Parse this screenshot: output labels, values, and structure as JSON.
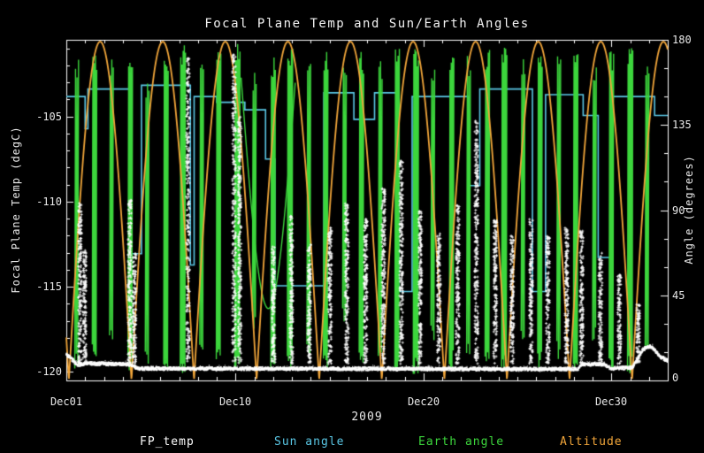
{
  "chart_data": {
    "type": "line",
    "title": "Focal Plane Temp and Sun/Earth Angles",
    "xlabel": "2009",
    "ylabel": "Focal Plane Temp (degC)",
    "x_range": [
      1,
      33
    ],
    "x_ticks": [
      {
        "day": 1,
        "label": "Dec01"
      },
      {
        "day": 10,
        "label": "Dec10"
      },
      {
        "day": 20,
        "label": "Dec20"
      },
      {
        "day": 30,
        "label": "Dec30"
      }
    ],
    "left_axis": {
      "label": "Focal Plane Temp (degC)",
      "range": [
        -120.5,
        -100.5
      ],
      "ticks": [
        -105,
        -110,
        -115,
        -120
      ],
      "tick_labels": [
        "-105",
        "-110",
        "-115",
        "-120"
      ]
    },
    "right_axis": {
      "label": "Angle (degrees)",
      "range": [
        0,
        180
      ],
      "ticks": [
        180,
        135,
        90,
        45,
        0
      ],
      "tick_labels": [
        "180",
        "135",
        "90",
        "45",
        "0"
      ]
    },
    "grid": false,
    "legend_position": "bottom",
    "legend": [
      {
        "label": "FP_temp",
        "color": "#ffffff"
      },
      {
        "label": "Sun angle",
        "color": "#5ac8e6"
      },
      {
        "label": "Earth angle",
        "color": "#3cd63c"
      },
      {
        "label": "Altitude",
        "color": "#f2a63a"
      }
    ],
    "series": [
      {
        "name": "Sun angle",
        "axis": "right",
        "type": "step",
        "color": "#5ac8e6",
        "changes": [
          [
            1.0,
            150
          ],
          [
            2.0,
            133
          ],
          [
            2.15,
            154
          ],
          [
            4.4,
            67
          ],
          [
            5.0,
            156
          ],
          [
            7.6,
            61
          ],
          [
            7.8,
            150
          ],
          [
            9.0,
            147
          ],
          [
            10.5,
            143
          ],
          [
            11.6,
            117
          ],
          [
            12.1,
            50
          ],
          [
            14.7,
            152
          ],
          [
            16.3,
            138
          ],
          [
            17.4,
            152
          ],
          [
            18.7,
            47
          ],
          [
            19.4,
            150
          ],
          [
            22.4,
            103
          ],
          [
            23.0,
            154
          ],
          [
            25.8,
            47
          ],
          [
            26.5,
            151
          ],
          [
            28.5,
            140
          ],
          [
            29.3,
            65
          ],
          [
            30.0,
            150
          ],
          [
            32.3,
            140
          ]
        ]
      },
      {
        "name": "Earth angle",
        "axis": "right",
        "type": "burst",
        "color": "#3cd63c",
        "windows": [
          [
            1.55,
            0.1,
            5,
            172,
            5
          ],
          [
            2.5,
            0.12,
            10,
            176,
            7
          ],
          [
            3.4,
            0.1,
            20,
            170,
            5
          ],
          [
            4.4,
            0.12,
            5,
            175,
            7
          ],
          [
            5.3,
            0.1,
            8,
            160,
            5
          ],
          [
            6.3,
            0.12,
            5,
            175,
            7
          ],
          [
            7.2,
            0.14,
            3,
            178,
            9
          ],
          [
            8.2,
            0.1,
            15,
            170,
            5
          ],
          [
            9.1,
            0.12,
            5,
            176,
            7
          ],
          [
            10.1,
            0.14,
            3,
            178,
            9
          ],
          [
            11.0,
            0.1,
            25,
            165,
            5
          ],
          [
            12.0,
            0.12,
            5,
            172,
            7
          ],
          [
            12.9,
            0.14,
            3,
            177,
            9
          ],
          [
            13.9,
            0.1,
            10,
            170,
            5
          ],
          [
            14.8,
            0.12,
            5,
            175,
            7
          ],
          [
            15.8,
            0.1,
            30,
            168,
            5
          ],
          [
            16.7,
            0.12,
            5,
            174,
            7
          ],
          [
            17.7,
            0.1,
            12,
            170,
            5
          ],
          [
            18.6,
            0.12,
            4,
            176,
            7
          ],
          [
            19.6,
            0.14,
            3,
            178,
            9
          ],
          [
            20.5,
            0.1,
            18,
            168,
            5
          ],
          [
            21.5,
            0.12,
            5,
            174,
            7
          ],
          [
            22.4,
            0.1,
            8,
            172,
            5
          ],
          [
            23.4,
            0.12,
            4,
            176,
            7
          ],
          [
            24.3,
            0.14,
            3,
            177,
            9
          ],
          [
            25.3,
            0.1,
            15,
            170,
            5
          ],
          [
            26.2,
            0.12,
            5,
            174,
            7
          ],
          [
            27.2,
            0.1,
            10,
            172,
            5
          ],
          [
            28.1,
            0.12,
            4,
            176,
            7
          ],
          [
            29.1,
            0.1,
            20,
            168,
            5
          ],
          [
            30.0,
            0.12,
            5,
            174,
            7
          ],
          [
            31.0,
            0.14,
            3,
            177,
            9
          ],
          [
            31.9,
            0.1,
            12,
            170,
            5
          ]
        ],
        "slow_arcs": [
          [
            10.3,
            13.2,
            160,
            38
          ]
        ]
      },
      {
        "name": "Altitude",
        "axis": "right",
        "type": "arches",
        "color": "#f2a63a",
        "period": 3.33,
        "t0": 1.135,
        "peak": 179
      },
      {
        "name": "FP_temp",
        "axis": "left",
        "type": "scatter",
        "color": "#ffffff",
        "noise": 0.09,
        "baseline_anchors": [
          [
            1,
            -118.9
          ],
          [
            1.6,
            -119.55
          ],
          [
            2.0,
            -119.45
          ],
          [
            4.4,
            -119.5
          ],
          [
            4.8,
            -119.75
          ],
          [
            28.2,
            -119.78
          ],
          [
            28.4,
            -119.5
          ],
          [
            29.6,
            -119.5
          ],
          [
            30.0,
            -119.75
          ],
          [
            31.1,
            -119.7
          ],
          [
            31.7,
            -118.6
          ],
          [
            32.1,
            -118.45
          ],
          [
            32.6,
            -119.05
          ],
          [
            33,
            -119.3
          ]
        ],
        "events": [
          [
            1.7,
            -110.0
          ],
          [
            1.95,
            -112.8
          ],
          [
            4.35,
            -109.8
          ],
          [
            4.6,
            -113
          ],
          [
            7.45,
            -101.5
          ],
          [
            9.9,
            -101.2
          ],
          [
            10.2,
            -105
          ],
          [
            12.0,
            -112.5
          ],
          [
            12.95,
            -110.8
          ],
          [
            13.9,
            -112.5
          ],
          [
            15.0,
            -111.5
          ],
          [
            15.9,
            -110.0
          ],
          [
            16.9,
            -111
          ],
          [
            17.85,
            -109.2
          ],
          [
            18.8,
            -107.5
          ],
          [
            19.8,
            -110.5
          ],
          [
            20.8,
            -111.8
          ],
          [
            21.8,
            -110.2
          ],
          [
            22.8,
            -105.2
          ],
          [
            23.8,
            -111
          ],
          [
            24.7,
            -112
          ],
          [
            25.7,
            -111
          ],
          [
            26.6,
            -112
          ],
          [
            27.6,
            -111.5
          ],
          [
            28.4,
            -111.7
          ],
          [
            29.4,
            -113
          ],
          [
            30.4,
            -114.2
          ],
          [
            31.4,
            -116
          ]
        ]
      }
    ]
  }
}
